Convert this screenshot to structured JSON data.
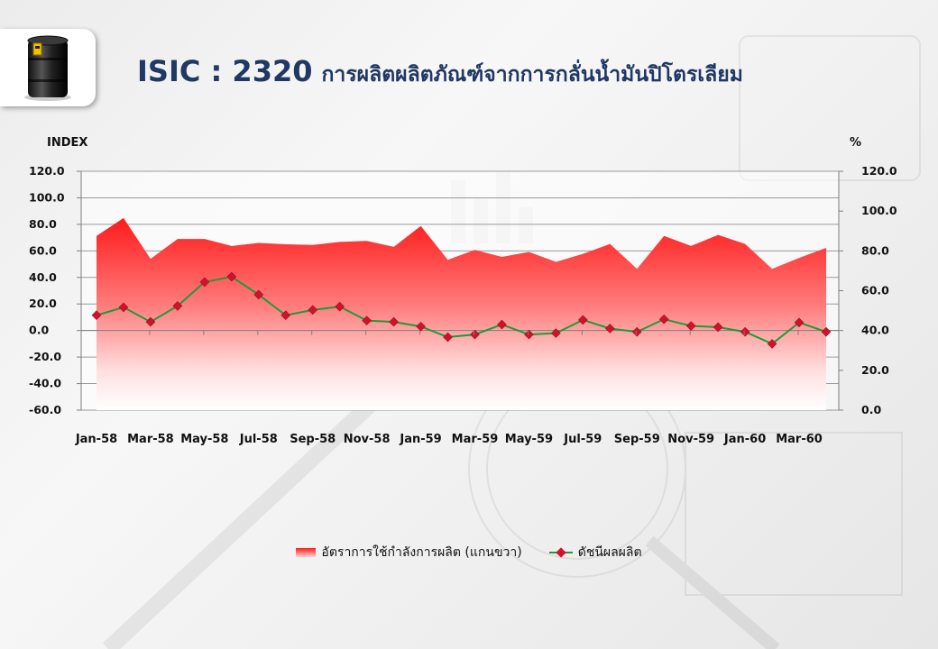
{
  "title": {
    "code": "ISIC : 2320",
    "description": "การผลิตผลิตภัณฑ์จากการกลั่นน้ำมันปิโตรเลียม"
  },
  "logo": {
    "icon": "oil-barrel-icon"
  },
  "chart_data": {
    "type": "line",
    "left_axis_label": "INDEX",
    "right_axis_label": "%",
    "left_ylim": [
      -60,
      120
    ],
    "left_ticks": [
      "120.0",
      "100.0",
      "80.0",
      "60.0",
      "40.0",
      "20.0",
      "0.0",
      "-20.0",
      "-40.0",
      "-60.0"
    ],
    "right_ylim": [
      0,
      120
    ],
    "right_ticks": [
      "120.0",
      "100.0",
      "80.0",
      "60.0",
      "40.0",
      "20.0",
      "0.0"
    ],
    "x_tick_labels": [
      "Jan-58",
      "Mar-58",
      "May-58",
      "Jul-58",
      "Sep-58",
      "Nov-58",
      "Jan-59",
      "Mar-59",
      "May-59",
      "Jul-59",
      "Sep-59",
      "Nov-59",
      "Jan-60",
      "Mar-60"
    ],
    "categories": [
      "Jan-58",
      "Feb-58",
      "Mar-58",
      "Apr-58",
      "May-58",
      "Jun-58",
      "Jul-58",
      "Aug-58",
      "Sep-58",
      "Oct-58",
      "Nov-58",
      "Dec-58",
      "Jan-59",
      "Feb-59",
      "Mar-59",
      "Apr-59",
      "May-59",
      "Jun-59",
      "Jul-59",
      "Aug-59",
      "Sep-59",
      "Oct-59",
      "Nov-59",
      "Dec-59",
      "Jan-60",
      "Feb-60",
      "Mar-60",
      "Apr-60"
    ],
    "grid": true,
    "legend_position": "bottom-center",
    "series": [
      {
        "name": "อัตราการใช้กำลังการผลิต (แกนขวา)",
        "type": "area",
        "axis": "right",
        "color": "#ff1a1a",
        "values": [
          87.5,
          96.5,
          76,
          86,
          86,
          82.5,
          84,
          83.3,
          83,
          84.5,
          85,
          82,
          92.5,
          75.5,
          80.5,
          77,
          79.5,
          74.5,
          78.5,
          83.5,
          71,
          87.5,
          82.5,
          88,
          83.5,
          71,
          76.5,
          81.5
        ]
      },
      {
        "name": "ดัชนีผลผลิต",
        "type": "line",
        "axis": "left",
        "color": "#1a9c3a",
        "marker_color": "#d4112a",
        "values": [
          11.5,
          17.5,
          6.5,
          18.5,
          36.5,
          40.5,
          27,
          11.5,
          15.5,
          18,
          7.5,
          6.5,
          3,
          -5,
          -3,
          4.5,
          -3,
          -2,
          8,
          1.5,
          -1,
          8.5,
          3.5,
          2.5,
          -1,
          -10,
          6,
          -1
        ]
      }
    ]
  }
}
